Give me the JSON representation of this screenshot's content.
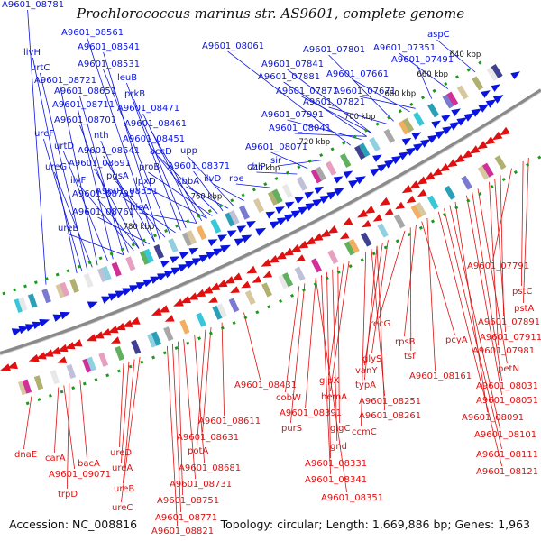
{
  "title": "Prochlorococcus marinus str. AS9601, complete genome",
  "accession": "Accession: NC_008816",
  "summary": "Topology: circular; Length: 1,669,886 bp; Genes: 1,963",
  "colors": {
    "forward": "#0a14e0",
    "reverse": "#e01010",
    "backbone": "#888888",
    "tick": "#1a9a1a"
  },
  "kbp_ticks": [
    "640 kbp",
    "660 kbp",
    "680 kbp",
    "700 kbp",
    "720 kbp",
    "740 kbp",
    "760 kbp",
    "780 kbp"
  ],
  "forward_labels": [
    "A9601_08781",
    "A9601_08561",
    "A9601_08541",
    "livH",
    "urtC",
    "A9601_08531",
    "A9601_08721",
    "leuB",
    "A9601_08651",
    "prkB",
    "A9601_08711",
    "A9601_08471",
    "A9601_08701",
    "A9601_08461",
    "ureF",
    "nth",
    "A9601_08451",
    "urtD",
    "upp",
    "A9601_08641",
    "accD",
    "ureG",
    "A9601_08691",
    "proB",
    "A9601_08371",
    "pgsA",
    "ilvD",
    "ilvF",
    "lpxD",
    "cbbA",
    "A9601_08791",
    "A9601_08551",
    "rpe",
    "hisA",
    "A9601_08761",
    "ureE",
    "A9601_08061",
    "A9601_07801",
    "A9601_07351",
    "aspC",
    "A9601_07841",
    "A9601_07491",
    "A9601_07881",
    "A9601_07661",
    "A9601_07871",
    "A9601_07671",
    "A9601_07821",
    "A9601_07991",
    "A9601_08041",
    "A9601_08071",
    "sir",
    "chlP"
  ],
  "reverse_labels": [
    "A9601_07791",
    "pstC",
    "pstA",
    "A9601_07891",
    "A9601_07911",
    "A9601_07981",
    "petN",
    "A9601_08031",
    "A9601_08051",
    "A9601_08091",
    "A9601_08101",
    "A9601_08111",
    "A9601_08121",
    "recG",
    "rpsB",
    "pcyA",
    "tsf",
    "A9601_08161",
    "glyS",
    "vanY",
    "typA",
    "A9601_08251",
    "A9601_08261",
    "ccmC",
    "glpX",
    "hemA",
    "glgC",
    "cobW",
    "A9601_08391",
    "purS",
    "gnd",
    "A9601_08331",
    "A9601_08341",
    "A9601_08351",
    "A9601_08431",
    "A9601_08611",
    "A9601_08631",
    "potA",
    "A9601_08681",
    "A9601_08731",
    "A9601_08751",
    "A9601_08771",
    "A9601_08821",
    "ureD",
    "ureA",
    "ureB",
    "ureC",
    "bacA",
    "carA",
    "A9601_09071",
    "trpD",
    "dnaE"
  ]
}
